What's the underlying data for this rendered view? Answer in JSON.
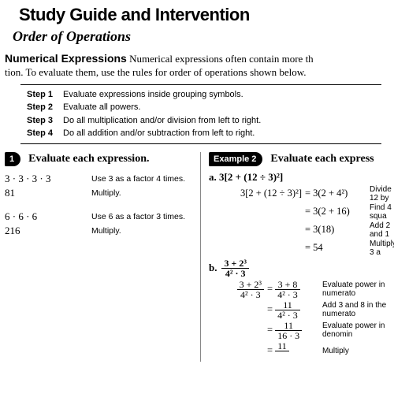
{
  "header": {
    "title": "Study Guide and Intervention",
    "subtitle": "Order of Operations"
  },
  "intro": {
    "lead": "Numerical Expressions",
    "text": "Numerical expressions often contain more th",
    "text2": "tion. To evaluate them, use the rules for order of operations shown below."
  },
  "steps": {
    "s1_label": "Step 1",
    "s1_text": "Evaluate expressions inside grouping symbols.",
    "s2_label": "Step 2",
    "s2_text": "Evaluate all powers.",
    "s3_label": "Step 3",
    "s3_text": "Do all multiplication and/or division from left to right.",
    "s4_label": "Step 4",
    "s4_text": "Do all addition and/or subtraction from left to right."
  },
  "ex1": {
    "tab": "1",
    "title": "Evaluate each expression.",
    "a_line1": "3 · 3 · 3 · 3",
    "a_note1": "Use 3 as a factor 4 times.",
    "a_line2": "81",
    "a_note2": "Multiply.",
    "b_line1": "6 · 6 · 6",
    "b_note1": "Use 6 as a factor 3 times.",
    "b_line2": "216",
    "b_note2": "Multiply."
  },
  "ex2": {
    "tab": "Example 2",
    "title": "Evaluate each express",
    "a_label": "a. 3[2 + (12 ÷ 3)²]",
    "a_lhs": "3[2 + (12 ÷ 3)²]",
    "a_r1_mid": "= 3(2 + 4²)",
    "a_r1_note": "Divide 12 by",
    "a_r2_mid": "= 3(2 + 16)",
    "a_r2_note": "Find 4 squa",
    "a_r3_mid": "= 3(18)",
    "a_r3_note": "Add 2 and 1",
    "a_r4_mid": "= 54",
    "a_r4_note": "Multiply 3 a",
    "b_label": "b.",
    "b_frac_num": "3 + 2³",
    "b_frac_den": "4² · 3",
    "b_r1_num": "3 + 2³",
    "b_r1_den": "4² · 3",
    "b_r1_rnum": "3 + 8",
    "b_r1_rden": "4² · 3",
    "b_r1_note": "Evaluate power in numerato",
    "b_r2_rnum": "11",
    "b_r2_rden": "4² · 3",
    "b_r2_note": "Add 3 and 8 in the numerato",
    "b_r3_rnum": "11",
    "b_r3_rden": "16 · 3",
    "b_r3_note": "Evaluate power in denomin",
    "b_r4_rnum": "11",
    "b_r4_note": "Multiply"
  },
  "style": {
    "bg": "#ffffff",
    "text": "#000000",
    "tab_bg": "#000000",
    "tab_fg": "#ffffff",
    "divider": "#888888",
    "title_fontsize": 22,
    "subtitle_fontsize": 18,
    "body_fontsize": 13,
    "note_fontsize": 10.5
  }
}
